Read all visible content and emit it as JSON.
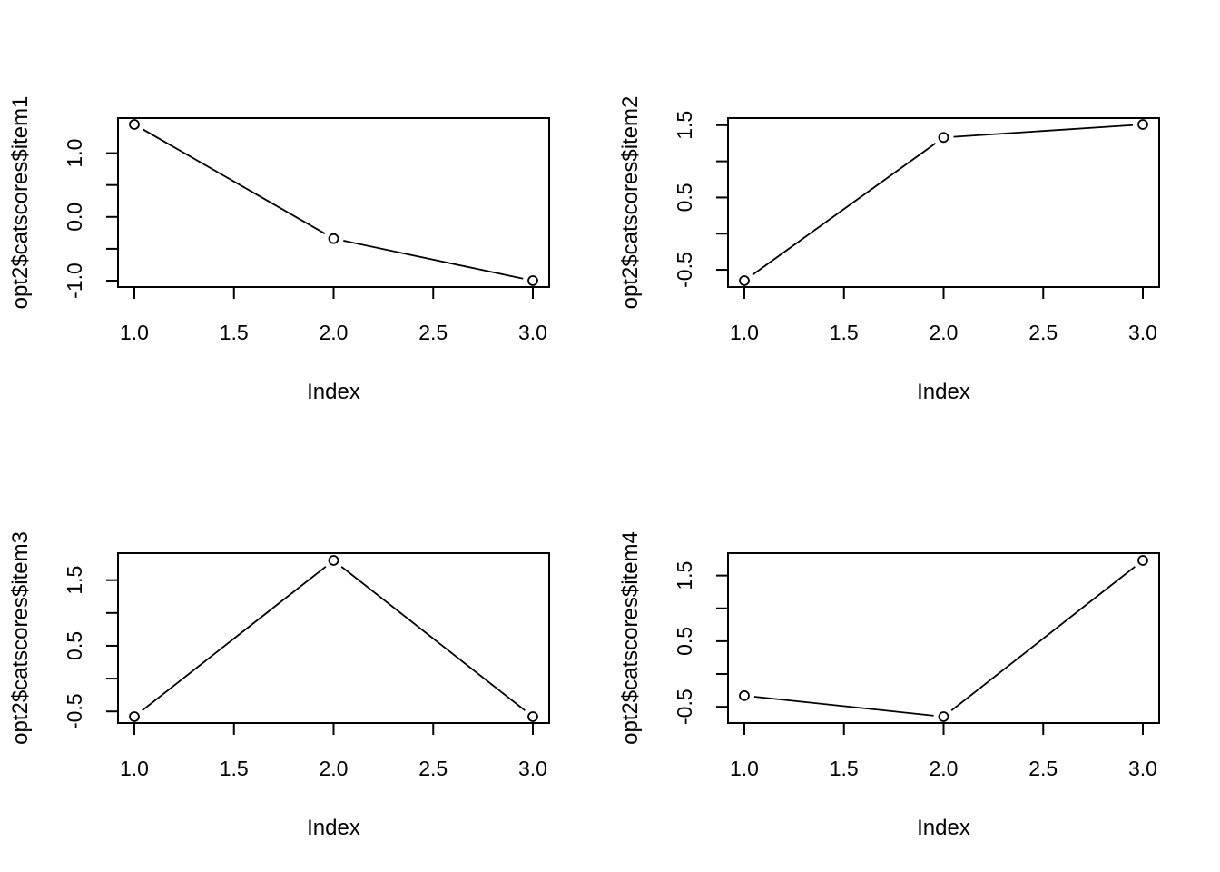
{
  "chart_data": [
    {
      "type": "line",
      "xlabel": "Index",
      "ylabel": "opt2$catscores$item1",
      "x": [
        1,
        2,
        3
      ],
      "values": [
        1.45,
        -0.34,
        -1.0
      ],
      "xlim": [
        1,
        3
      ],
      "ylim": [
        -1.0,
        1.45
      ],
      "xticks": [
        1.0,
        1.5,
        2.0,
        2.5,
        3.0
      ],
      "xtick_labels": [
        "1.0",
        "1.5",
        "2.0",
        "2.5",
        "3.0"
      ],
      "yticks": [
        -1.0,
        -0.5,
        0.0,
        0.5,
        1.0
      ],
      "ytick_labels": [
        "-1.0",
        "",
        "0.0",
        "",
        "1.0"
      ],
      "marker": "open-circle",
      "grid": false
    },
    {
      "type": "line",
      "xlabel": "Index",
      "ylabel": "opt2$catscores$item2",
      "x": [
        1,
        2,
        3
      ],
      "values": [
        -0.65,
        1.33,
        1.51
      ],
      "xlim": [
        1,
        3
      ],
      "ylim": [
        -0.65,
        1.51
      ],
      "xticks": [
        1.0,
        1.5,
        2.0,
        2.5,
        3.0
      ],
      "xtick_labels": [
        "1.0",
        "1.5",
        "2.0",
        "2.5",
        "3.0"
      ],
      "yticks": [
        -0.5,
        0.0,
        0.5,
        1.0,
        1.5
      ],
      "ytick_labels": [
        "-0.5",
        "",
        "0.5",
        "",
        "1.5"
      ],
      "marker": "open-circle",
      "grid": false
    },
    {
      "type": "line",
      "xlabel": "Index",
      "ylabel": "opt2$catscores$item3",
      "x": [
        1,
        2,
        3
      ],
      "values": [
        -0.58,
        1.8,
        -0.58
      ],
      "xlim": [
        1,
        3
      ],
      "ylim": [
        -0.58,
        1.8
      ],
      "xticks": [
        1.0,
        1.5,
        2.0,
        2.5,
        3.0
      ],
      "xtick_labels": [
        "1.0",
        "1.5",
        "2.0",
        "2.5",
        "3.0"
      ],
      "yticks": [
        -0.5,
        0.0,
        0.5,
        1.0,
        1.5
      ],
      "ytick_labels": [
        "-0.5",
        "",
        "0.5",
        "",
        "1.5"
      ],
      "marker": "open-circle",
      "grid": false
    },
    {
      "type": "line",
      "xlabel": "Index",
      "ylabel": "opt2$catscores$item4",
      "x": [
        1,
        2,
        3
      ],
      "values": [
        -0.33,
        -0.65,
        1.73
      ],
      "xlim": [
        1,
        3
      ],
      "ylim": [
        -0.65,
        1.73
      ],
      "xticks": [
        1.0,
        1.5,
        2.0,
        2.5,
        3.0
      ],
      "xtick_labels": [
        "1.0",
        "1.5",
        "2.0",
        "2.5",
        "3.0"
      ],
      "yticks": [
        -0.5,
        0.0,
        0.5,
        1.0,
        1.5
      ],
      "ytick_labels": [
        "-0.5",
        "",
        "0.5",
        "",
        "1.5"
      ],
      "marker": "open-circle",
      "grid": false
    }
  ]
}
